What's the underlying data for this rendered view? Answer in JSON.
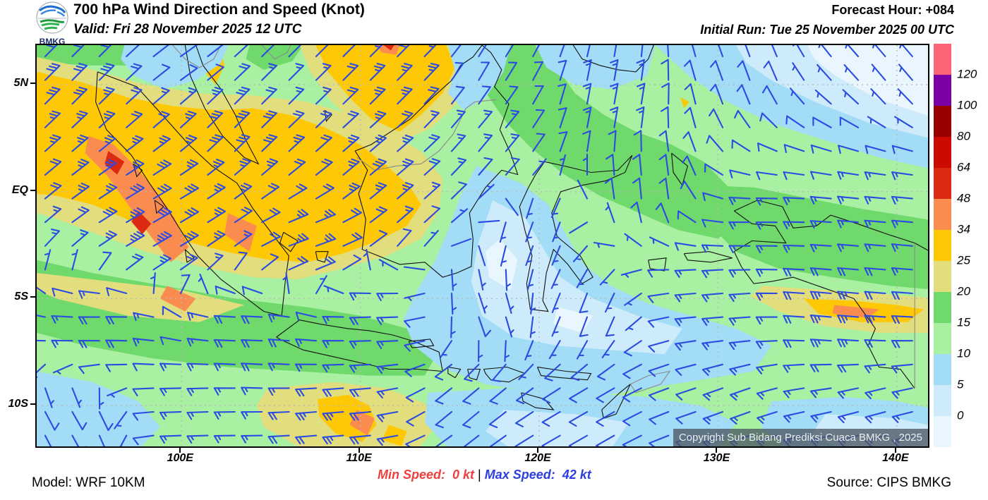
{
  "header": {
    "logo": "BMKG",
    "title": "700 hPa Wind Direction and Speed (Knot)",
    "valid": "Valid: Fri 28 November 2025 12 UTC",
    "forecast_hour_label": "Forecast Hour: ",
    "forecast_hour_value": "+084",
    "initial_run": "Initial Run: Tue 25 November 2025 00 UTC"
  },
  "map": {
    "lat_ticks": [
      {
        "label": "5N",
        "lat": 5
      },
      {
        "label": "EQ",
        "lat": 0
      },
      {
        "label": "5S",
        "lat": -5
      },
      {
        "label": "10S",
        "lat": -10
      }
    ],
    "lon_ticks": [
      {
        "label": "100E",
        "lon": 100
      },
      {
        "label": "110E",
        "lon": 110
      },
      {
        "label": "120E",
        "lon": 120
      },
      {
        "label": "130E",
        "lon": 130
      },
      {
        "label": "140E",
        "lon": 140
      }
    ],
    "copyright": "Copyright Sub Bidang Prediksi Cuaca BMKG , 2025"
  },
  "legend": {
    "labels": [
      "120",
      "100",
      "80",
      "64",
      "48",
      "34",
      "25",
      "20",
      "15",
      "10",
      "5",
      "0"
    ],
    "colors_top_to_bottom": [
      "#fb6377",
      "#7a00a5",
      "#980000",
      "#cc0a00",
      "#dc2a12",
      "#fb8c50",
      "#ffc805",
      "#e2de7e",
      "#6fd96c",
      "#a9f0a0",
      "#a2dcf6",
      "#cdebfa",
      "#eaf6fd"
    ]
  },
  "footer": {
    "model": "Model: WRF 10KM",
    "min_label": "Min Speed:  ",
    "min_value": "0 kt",
    "separator": " | ",
    "max_label": "Max Speed:  ",
    "max_value": "42 kt",
    "source": "Source: CIPS BMKG"
  },
  "chart_data": {
    "type": "heatmap",
    "quantity": "wind speed and direction",
    "level": "700 hPa",
    "units": "knot",
    "lon_range": [
      91.9,
      142.3
    ],
    "lat_range": [
      -12.05,
      6.85
    ],
    "speed_bounds": [
      0,
      5,
      10,
      15,
      20,
      25,
      34,
      48,
      64,
      80,
      100,
      120
    ],
    "min_speed_kt": 0,
    "max_speed_kt": 42,
    "wind_controls_lon_lat_dirfrom_speed": [
      [
        94,
        5.5,
        45,
        30
      ],
      [
        100,
        5.8,
        55,
        8
      ],
      [
        106,
        5,
        45,
        14
      ],
      [
        112,
        5.8,
        45,
        28
      ],
      [
        116.5,
        5.2,
        30,
        8
      ],
      [
        103,
        3,
        45,
        32
      ],
      [
        99,
        -1,
        60,
        30
      ],
      [
        98,
        -2.2,
        60,
        36
      ],
      [
        111,
        1,
        50,
        28
      ],
      [
        107,
        -2.5,
        70,
        26
      ],
      [
        117,
        2.5,
        40,
        14
      ],
      [
        124,
        4,
        10,
        16
      ],
      [
        131,
        5.5,
        340,
        8
      ],
      [
        140,
        5.5,
        320,
        6
      ],
      [
        120,
        -1.5,
        200,
        7
      ],
      [
        126,
        0,
        355,
        10
      ],
      [
        133,
        -1.5,
        270,
        15
      ],
      [
        140,
        -1.5,
        275,
        16
      ],
      [
        96,
        -6,
        270,
        22
      ],
      [
        104,
        -6.5,
        272,
        22
      ],
      [
        111,
        -6,
        268,
        18
      ],
      [
        117,
        -5.5,
        160,
        8
      ],
      [
        123,
        -5.5,
        200,
        8
      ],
      [
        130,
        -5,
        265,
        15
      ],
      [
        137,
        -5.5,
        275,
        26
      ],
      [
        94,
        -10.5,
        150,
        9
      ],
      [
        101,
        -10,
        268,
        16
      ],
      [
        109,
        -10.5,
        265,
        24
      ],
      [
        116,
        -10,
        230,
        12
      ],
      [
        123,
        -10.5,
        240,
        12
      ],
      [
        131,
        -10,
        250,
        13
      ],
      [
        139,
        -10.5,
        255,
        14
      ]
    ]
  }
}
